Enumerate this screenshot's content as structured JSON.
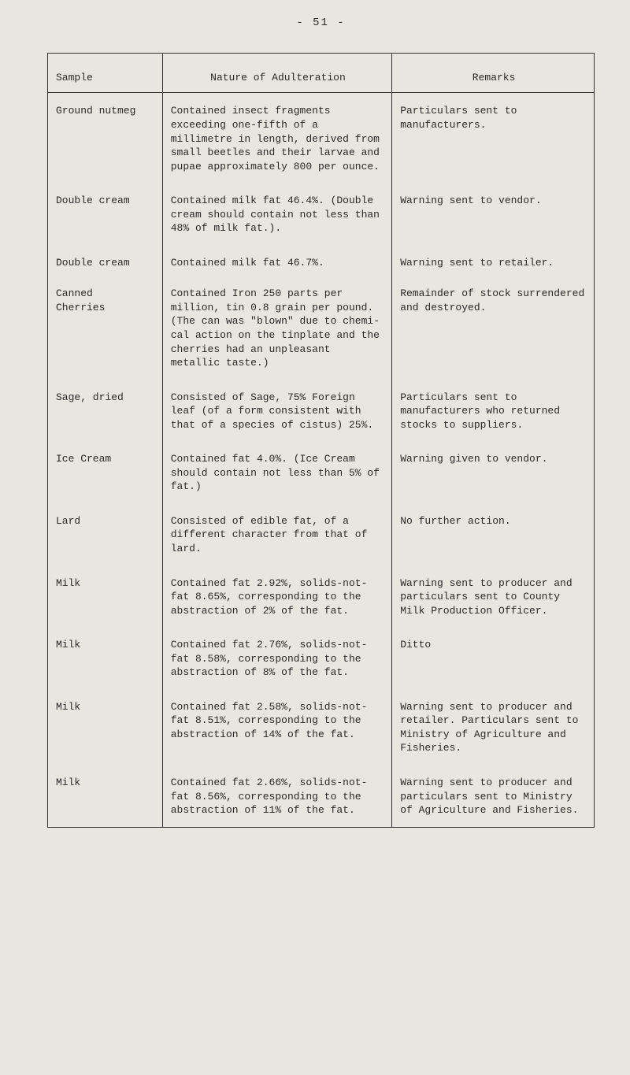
{
  "page_number": "- 51 -",
  "table": {
    "headers": {
      "sample": "Sample",
      "nature": "Nature of Adulteration",
      "remarks": "Remarks"
    },
    "rows": [
      {
        "sample": "Ground nutmeg",
        "nature": "Contained insect fragments exceeding one-fifth of a millimetre in length, derived from small beetles and their larvae and pupae approximately 800 per ounce.",
        "remarks": "Particulars sent to manufacturers."
      },
      {
        "sample": "Double cream",
        "nature": "Contained milk fat 46.4%. (Double cream should con­tain not less than 48% of milk fat.).",
        "remarks": "Warning sent to vendor."
      },
      {
        "sample": "Double cream",
        "nature": "Contained milk fat 46.7%.",
        "remarks": "Warning sent to retailer."
      },
      {
        "sample": "Canned\n  Cherries",
        "nature": "Contained Iron 250 parts per million, tin 0.8 grain per pound. (The can was \"blown\" due to chemi­cal action on the tinplate and the cherries had an unpleasant metallic taste.)",
        "remarks": "Remainder of stock surrendered and destroyed."
      },
      {
        "sample": "Sage, dried",
        "nature": "Consisted of Sage, 75% Foreign leaf (of a form consistent with that of a species of cistus) 25%.",
        "remarks": "Particulars sent to manufacturers who returned stocks to suppliers."
      },
      {
        "sample": "Ice Cream",
        "nature": "Contained fat 4.0%. (Ice Cream should contain not less than 5% of fat.)",
        "remarks": "Warning given to vendor."
      },
      {
        "sample": "Lard",
        "nature": "Consisted of edible fat, of a different character from that of lard.",
        "remarks": "No further action."
      },
      {
        "sample": "Milk",
        "nature": "Contained fat 2.92%, solids-not-fat 8.65%, corresponding to the abstraction of 2% of the fat.",
        "remarks": "Warning sent to producer and particulars sent to County Milk Production Officer."
      },
      {
        "sample": "Milk",
        "nature": "Contained fat 2.76%, solids-not-fat 8.58%, corresponding to the abstraction of 8% of the fat.",
        "remarks": "Ditto"
      },
      {
        "sample": "Milk",
        "nature": "Contained fat 2.58%, solids-not-fat 8.51%, corresponding to the abstraction of 14% of the fat.",
        "remarks": "Warning sent to producer and retailer. Particulars sent to Ministry of Agriculture and Fisheries."
      },
      {
        "sample": "Milk",
        "nature": "Contained fat 2.66%, solids-not-fat 8.56%, corresponding to the abstraction of 11% of the fat.",
        "remarks": "Warning sent to producer and particulars sent to Ministry of Agriculture and Fisheries."
      }
    ]
  },
  "style": {
    "background_color": "#e8e6de",
    "text_color": "#2a2a28",
    "border_color": "#333333",
    "font_family": "Courier New",
    "font_size_pt": 10,
    "col_widths_pct": [
      21,
      42,
      37
    ]
  }
}
